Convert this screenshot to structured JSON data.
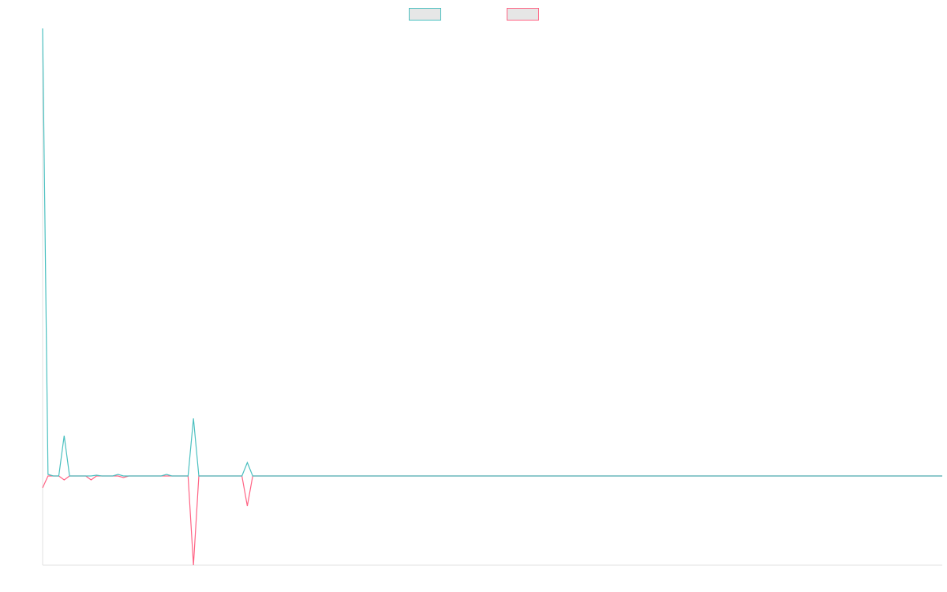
{
  "chart_data": {
    "type": "line",
    "legend": "top",
    "ylim": [
      -113,
      567
    ],
    "series": [
      {
        "color": "#4bc0c0",
        "values": [
          567,
          2,
          0,
          0,
          51,
          0,
          0,
          0,
          0,
          0,
          1,
          0,
          0,
          0,
          2,
          0,
          0,
          0,
          0,
          0,
          0,
          0,
          0,
          2,
          0,
          0,
          0,
          0,
          73,
          0,
          0,
          0,
          0,
          0,
          0,
          0,
          0,
          0,
          17,
          0,
          0,
          0,
          0,
          0,
          0,
          0,
          0,
          0,
          0,
          0,
          0,
          0,
          0,
          0,
          0,
          0,
          0,
          0,
          0,
          0,
          0,
          0,
          0,
          0,
          0,
          0,
          0,
          0,
          0,
          0,
          0,
          0,
          0,
          0,
          0,
          0,
          0,
          0,
          0,
          0,
          0,
          0,
          0,
          0,
          0,
          0,
          0,
          0,
          0,
          0,
          0,
          0,
          0,
          0,
          0,
          0,
          0,
          0,
          0,
          0,
          0,
          0,
          0,
          0,
          0,
          0,
          0,
          0,
          0,
          0,
          0,
          0,
          0,
          0,
          0,
          0,
          0,
          0,
          0,
          0,
          0,
          0,
          0,
          0,
          0,
          0,
          0,
          0,
          0,
          0,
          0,
          0,
          0,
          0,
          0,
          0,
          0,
          0,
          0,
          0,
          0,
          0,
          0,
          0,
          0,
          0,
          0,
          0,
          0,
          0,
          0,
          0,
          0,
          0,
          0,
          0,
          0,
          0,
          0,
          0,
          0,
          0,
          0,
          0,
          0,
          0,
          0,
          0
        ]
      },
      {
        "color": "#ff6384",
        "values": [
          -15,
          0,
          0,
          0,
          -5,
          0,
          0,
          0,
          0,
          -5,
          0,
          0,
          0,
          0,
          0,
          -2,
          0,
          0,
          0,
          0,
          0,
          0,
          0,
          0,
          0,
          0,
          0,
          0,
          -113,
          0,
          0,
          0,
          0,
          0,
          0,
          0,
          0,
          0,
          -38,
          0,
          0,
          0,
          0,
          0,
          0,
          0,
          0,
          0,
          0,
          0,
          0,
          0,
          0,
          0,
          0,
          0,
          0,
          0,
          0,
          0,
          0,
          0,
          0,
          0,
          0,
          0,
          0,
          0,
          0,
          0,
          0,
          0,
          0,
          0,
          0,
          0,
          0,
          0,
          0,
          0,
          0,
          0,
          0,
          0,
          0,
          0,
          0,
          0,
          0,
          0,
          0,
          0,
          0,
          0,
          0,
          0,
          0,
          0,
          0,
          0,
          0,
          0,
          0,
          0,
          0,
          0,
          0,
          0,
          0,
          0,
          0,
          0,
          0,
          0,
          0,
          0,
          0,
          0,
          0,
          0,
          0,
          0,
          0,
          0,
          0,
          0,
          0,
          0,
          0,
          0,
          0,
          0,
          0,
          0,
          0,
          0,
          0,
          0,
          0,
          0,
          0,
          0,
          0,
          0,
          0,
          0,
          0,
          0,
          0,
          0,
          0,
          0,
          0,
          0,
          0,
          0,
          0,
          0,
          0,
          0,
          0,
          0,
          0,
          0,
          0,
          0,
          0,
          0
        ]
      }
    ]
  }
}
